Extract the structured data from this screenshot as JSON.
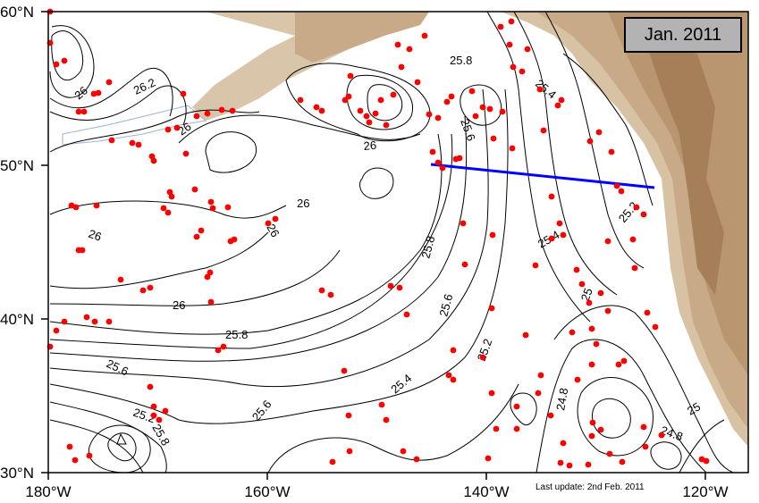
{
  "title_box": {
    "text": "Jan. 2011"
  },
  "last_update": "Last update: 2nd Feb. 2011",
  "lat_labels": [
    "60°N",
    "50°N",
    "40°N",
    "30°N"
  ],
  "lon_labels": [
    "180°W",
    "160°W",
    "140°W",
    "120°W"
  ],
  "contour_labels": [
    "26.2",
    "26",
    "26",
    "26",
    "26",
    "26",
    "26",
    "26",
    "25.8",
    "25.8",
    "25.8",
    "25.6",
    "25.6",
    "25.6",
    "25.6",
    "25.4",
    "25.4",
    "25.4",
    "25.2",
    "25.2",
    "25.2",
    "25",
    "25",
    "24.8",
    "24.8",
    "25.8"
  ],
  "colors": {
    "float_dots": "#ff0000",
    "section_line": "#0000ff",
    "land": "#d2b48c",
    "ocean": "#ffffff"
  }
}
